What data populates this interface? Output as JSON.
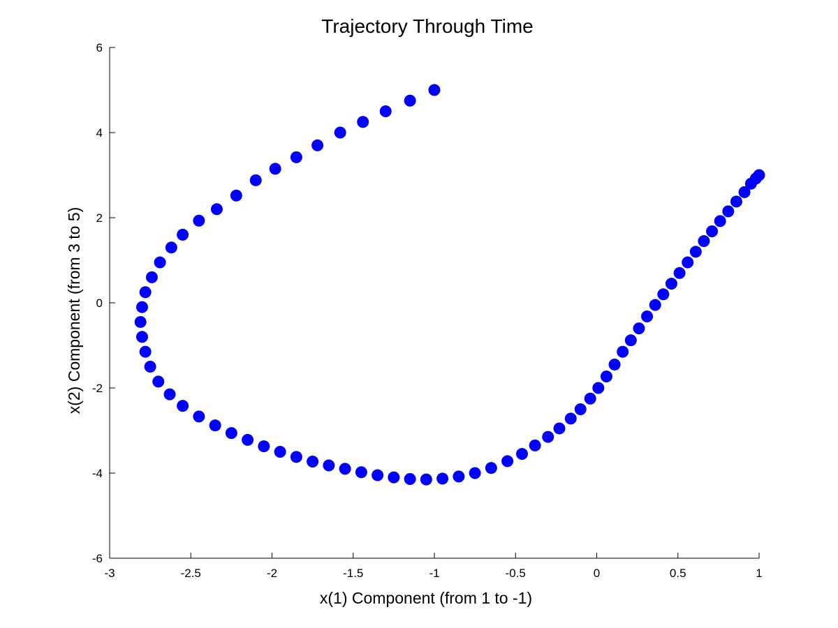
{
  "chart_data": {
    "type": "scatter",
    "title": "Trajectory Through Time",
    "xlabel": "x(1) Component (from 1 to -1)",
    "ylabel": "x(2) Component (from 3 to 5)",
    "xlim": [
      -3,
      1
    ],
    "ylim": [
      -6,
      6
    ],
    "xticks": [
      -3,
      -2.5,
      -2,
      -1.5,
      -1,
      -0.5,
      0,
      0.5,
      1
    ],
    "yticks": [
      -6,
      -4,
      -2,
      0,
      2,
      4,
      6
    ],
    "xtick_labels": [
      "-3",
      "-2.5",
      "-2",
      "-1.5",
      "-1",
      "-0.5",
      "0",
      "0.5",
      "1"
    ],
    "ytick_labels": [
      "-6",
      "-4",
      "-2",
      "0",
      "2",
      "4",
      "6"
    ],
    "grid": false,
    "marker_color": "#0000ff",
    "series": [
      {
        "points": [
          [
            1.0,
            3.0
          ],
          [
            0.98,
            2.92
          ],
          [
            0.95,
            2.8
          ],
          [
            0.91,
            2.6
          ],
          [
            0.86,
            2.38
          ],
          [
            0.81,
            2.15
          ],
          [
            0.76,
            1.92
          ],
          [
            0.71,
            1.68
          ],
          [
            0.66,
            1.45
          ],
          [
            0.61,
            1.2
          ],
          [
            0.56,
            0.95
          ],
          [
            0.51,
            0.7
          ],
          [
            0.46,
            0.45
          ],
          [
            0.41,
            0.2
          ],
          [
            0.36,
            -0.05
          ],
          [
            0.31,
            -0.32
          ],
          [
            0.26,
            -0.6
          ],
          [
            0.21,
            -0.88
          ],
          [
            0.16,
            -1.15
          ],
          [
            0.11,
            -1.45
          ],
          [
            0.06,
            -1.73
          ],
          [
            0.01,
            -2.0
          ],
          [
            -0.04,
            -2.25
          ],
          [
            -0.1,
            -2.5
          ],
          [
            -0.16,
            -2.72
          ],
          [
            -0.23,
            -2.95
          ],
          [
            -0.3,
            -3.15
          ],
          [
            -0.38,
            -3.35
          ],
          [
            -0.46,
            -3.55
          ],
          [
            -0.55,
            -3.72
          ],
          [
            -0.65,
            -3.88
          ],
          [
            -0.75,
            -4.0
          ],
          [
            -0.85,
            -4.08
          ],
          [
            -0.95,
            -4.13
          ],
          [
            -1.05,
            -4.15
          ],
          [
            -1.15,
            -4.14
          ],
          [
            -1.25,
            -4.1
          ],
          [
            -1.35,
            -4.05
          ],
          [
            -1.45,
            -3.98
          ],
          [
            -1.55,
            -3.9
          ],
          [
            -1.65,
            -3.82
          ],
          [
            -1.75,
            -3.73
          ],
          [
            -1.85,
            -3.62
          ],
          [
            -1.95,
            -3.5
          ],
          [
            -2.05,
            -3.37
          ],
          [
            -2.15,
            -3.22
          ],
          [
            -2.25,
            -3.06
          ],
          [
            -2.35,
            -2.88
          ],
          [
            -2.45,
            -2.67
          ],
          [
            -2.55,
            -2.42
          ],
          [
            -2.63,
            -2.15
          ],
          [
            -2.7,
            -1.85
          ],
          [
            -2.75,
            -1.5
          ],
          [
            -2.78,
            -1.15
          ],
          [
            -2.8,
            -0.8
          ],
          [
            -2.81,
            -0.45
          ],
          [
            -2.8,
            -0.1
          ],
          [
            -2.78,
            0.25
          ],
          [
            -2.74,
            0.6
          ],
          [
            -2.69,
            0.95
          ],
          [
            -2.62,
            1.3
          ],
          [
            -2.55,
            1.6
          ],
          [
            -2.45,
            1.93
          ],
          [
            -2.34,
            2.2
          ],
          [
            -2.22,
            2.52
          ],
          [
            -2.1,
            2.88
          ],
          [
            -1.98,
            3.15
          ],
          [
            -1.85,
            3.42
          ],
          [
            -1.72,
            3.7
          ],
          [
            -1.58,
            4.0
          ],
          [
            -1.44,
            4.25
          ],
          [
            -1.3,
            4.5
          ],
          [
            -1.15,
            4.75
          ],
          [
            -1.0,
            5.0
          ]
        ]
      }
    ]
  }
}
